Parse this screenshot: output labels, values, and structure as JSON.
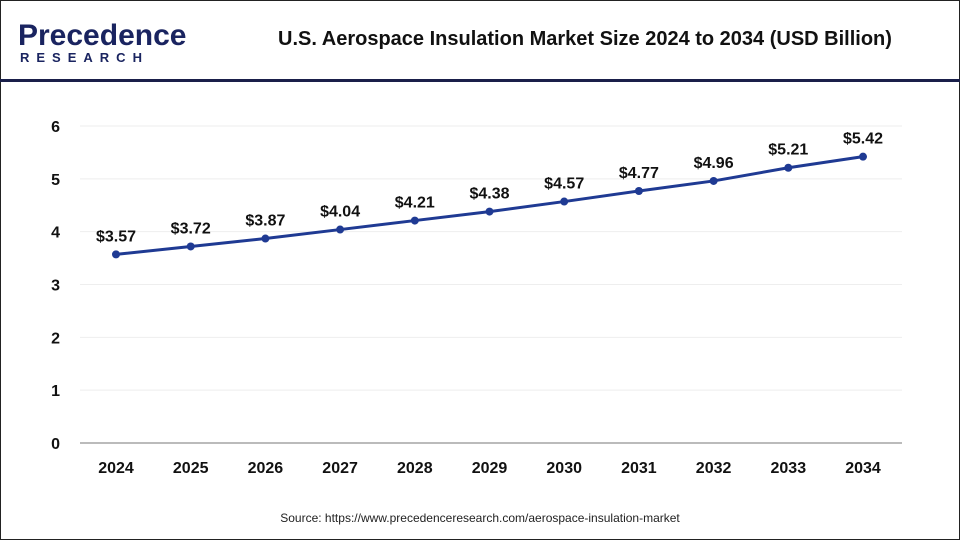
{
  "header": {
    "logo_line1": "Precedence",
    "logo_line2": "RESEARCH",
    "title": "U.S. Aerospace Insulation Market Size 2024 to 2034 (USD Billion)"
  },
  "source": "Source: https://www.precedenceresearch.com/aerospace-insulation-market",
  "chart_data": {
    "type": "line",
    "title": "U.S. Aerospace Insulation Market Size 2024 to 2034 (USD Billion)",
    "categories": [
      "2024",
      "2025",
      "2026",
      "2027",
      "2028",
      "2029",
      "2030",
      "2031",
      "2032",
      "2033",
      "2034"
    ],
    "values": [
      3.57,
      3.72,
      3.87,
      4.04,
      4.21,
      4.38,
      4.57,
      4.77,
      4.96,
      5.21,
      5.42
    ],
    "data_labels": [
      "$3.57",
      "$3.72",
      "$3.87",
      "$4.04",
      "$4.21",
      "$4.38",
      "$4.57",
      "$4.77",
      "$4.96",
      "$5.21",
      "$5.42"
    ],
    "yticks": [
      0,
      1,
      2,
      3,
      4,
      5,
      6
    ],
    "ylim": [
      0,
      6
    ],
    "grid": true,
    "line_color": "#1f3a93"
  }
}
